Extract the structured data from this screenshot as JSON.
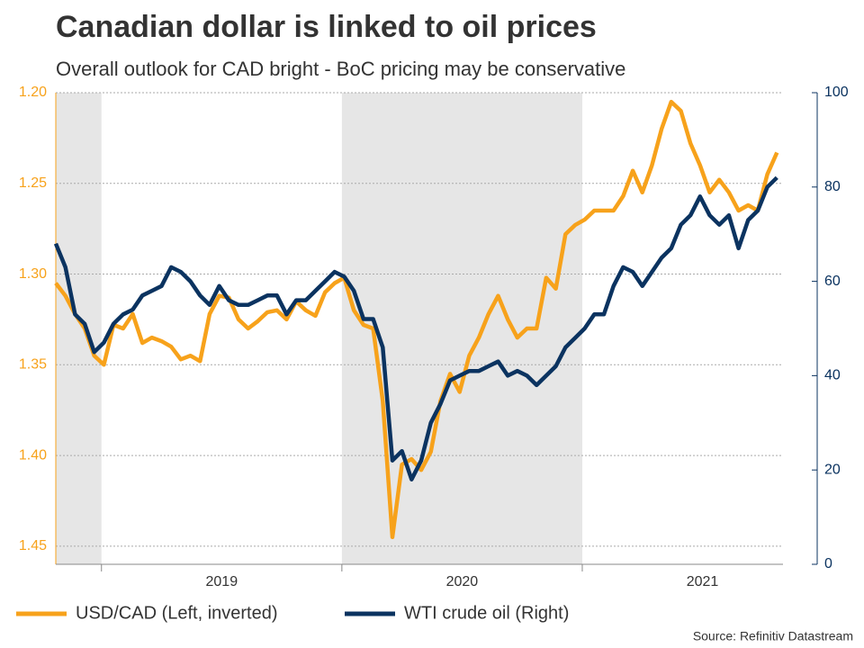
{
  "chart_data": {
    "type": "line",
    "title": "Canadian dollar is linked to oil prices",
    "subtitle": "Overall outlook for CAD bright - BoC pricing may be conservative",
    "source": "Source: Refinitiv Datastream",
    "x": [
      2018.81,
      2018.85,
      2018.89,
      2018.93,
      2018.97,
      2019.01,
      2019.05,
      2019.09,
      2019.13,
      2019.17,
      2019.21,
      2019.25,
      2019.29,
      2019.33,
      2019.37,
      2019.41,
      2019.45,
      2019.49,
      2019.53,
      2019.57,
      2019.61,
      2019.65,
      2019.69,
      2019.73,
      2019.77,
      2019.81,
      2019.85,
      2019.89,
      2019.93,
      2019.97,
      2020.01,
      2020.05,
      2020.09,
      2020.13,
      2020.17,
      2020.21,
      2020.25,
      2020.29,
      2020.33,
      2020.37,
      2020.41,
      2020.45,
      2020.49,
      2020.53,
      2020.57,
      2020.61,
      2020.65,
      2020.69,
      2020.73,
      2020.77,
      2020.81,
      2020.85,
      2020.89,
      2020.93,
      2020.97,
      2021.01,
      2021.05,
      2021.09,
      2021.13,
      2021.17,
      2021.21,
      2021.25,
      2021.29,
      2021.33,
      2021.37,
      2021.41,
      2021.45,
      2021.49,
      2021.53,
      2021.57,
      2021.61,
      2021.65,
      2021.69,
      2021.73,
      2021.77,
      2021.81
    ],
    "series": [
      {
        "name": "USD/CAD (Left, inverted)",
        "color": "#f7a21b",
        "axis": "y",
        "values": [
          1.305,
          1.312,
          1.322,
          1.33,
          1.345,
          1.35,
          1.328,
          1.33,
          1.322,
          1.338,
          1.335,
          1.337,
          1.34,
          1.347,
          1.345,
          1.348,
          1.322,
          1.312,
          1.313,
          1.325,
          1.33,
          1.326,
          1.321,
          1.32,
          1.325,
          1.315,
          1.32,
          1.323,
          1.31,
          1.305,
          1.302,
          1.32,
          1.328,
          1.33,
          1.37,
          1.445,
          1.405,
          1.402,
          1.408,
          1.398,
          1.37,
          1.355,
          1.365,
          1.345,
          1.335,
          1.322,
          1.312,
          1.325,
          1.335,
          1.33,
          1.33,
          1.302,
          1.308,
          1.278,
          1.273,
          1.27,
          1.265,
          1.265,
          1.265,
          1.257,
          1.243,
          1.255,
          1.24,
          1.22,
          1.205,
          1.21,
          1.228,
          1.24,
          1.255,
          1.248,
          1.255,
          1.265,
          1.262,
          1.265,
          1.245,
          1.233
        ]
      },
      {
        "name": "WTI crude oil (Right)",
        "color": "#0b3360",
        "axis": "y2",
        "values": [
          68,
          63,
          53,
          51,
          45,
          47,
          51,
          53,
          54,
          57,
          58,
          59,
          63,
          62,
          60,
          57,
          55,
          59,
          56,
          55,
          55,
          56,
          57,
          57,
          53,
          56,
          56,
          58,
          60,
          62,
          61,
          58,
          52,
          52,
          46,
          22,
          24,
          18,
          22,
          30,
          34,
          39,
          40,
          41,
          41,
          42,
          43,
          40,
          41,
          40,
          38,
          40,
          42,
          46,
          48,
          50,
          53,
          53,
          59,
          63,
          62,
          59,
          62,
          65,
          67,
          72,
          74,
          78,
          74,
          72,
          74,
          67,
          73,
          75,
          80,
          82
        ]
      }
    ],
    "xlim": [
      2018.81,
      2021.835
    ],
    "xticks": [
      2019,
      2020,
      2021
    ],
    "ylim": [
      1.2,
      1.46
    ],
    "y_inverted": true,
    "yticks": [
      {
        "value": 1.2,
        "label": "1.20"
      },
      1.25,
      {
        "value": 1.3,
        "label": "1.30"
      },
      1.35,
      {
        "value": 1.4,
        "label": "1.40"
      },
      1.45
    ],
    "y2lim": [
      0,
      100
    ],
    "y2ticks": [
      0,
      20,
      40,
      60,
      80,
      100
    ],
    "grid": true,
    "year_shading": true,
    "legend": "bottom"
  }
}
